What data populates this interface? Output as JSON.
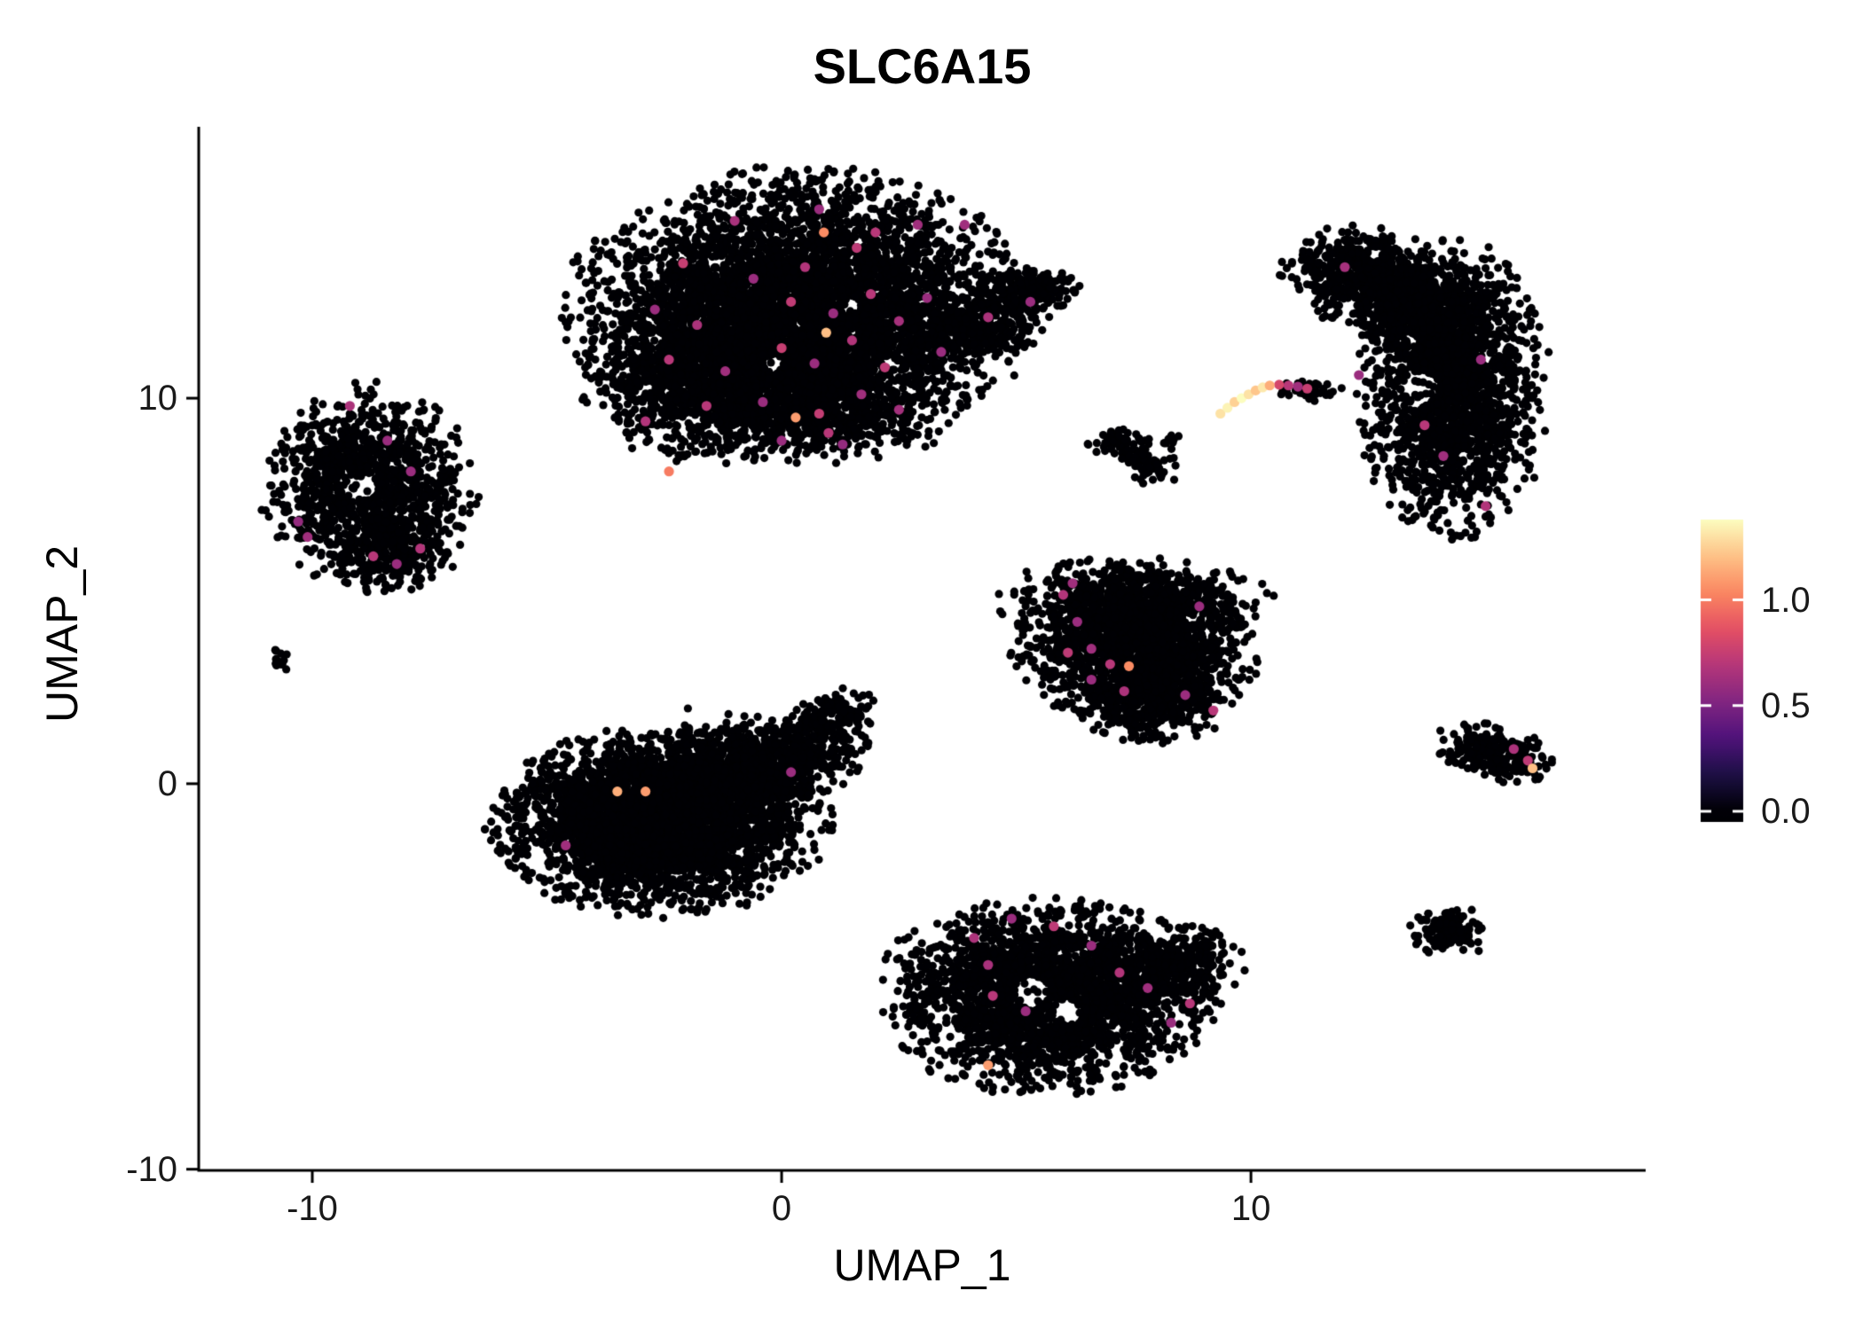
{
  "chart_data": {
    "type": "scatter",
    "title": "SLC6A15",
    "xlabel": "UMAP_1",
    "ylabel": "UMAP_2",
    "xlim": [
      -12.42,
      18.41
    ],
    "ylim": [
      -10.03,
      17.04
    ],
    "x_ticks": [
      -10,
      0,
      10
    ],
    "y_ticks": [
      -10,
      0,
      10
    ],
    "background_color": "#ffffff",
    "axis_color": "#000000",
    "point_radius_px": 4.6,
    "highlight_radius_px": 5.6,
    "colormap_stops": [
      [
        0,
        "#000004"
      ],
      [
        0.125,
        "#1c1044"
      ],
      [
        0.25,
        "#4f127b"
      ],
      [
        0.375,
        "#812581"
      ],
      [
        0.5,
        "#b5367a"
      ],
      [
        0.625,
        "#e55064"
      ],
      [
        0.75,
        "#fb8761"
      ],
      [
        0.875,
        "#fec287"
      ],
      [
        1,
        "#fcfdbf"
      ]
    ],
    "legend": {
      "tick_labels": [
        "1.0",
        "0.5",
        "0.0"
      ],
      "tick_values": [
        1.0,
        0.5,
        0.0
      ],
      "bar_vmin": -0.05,
      "bar_vmax": 1.38,
      "color_domain": [
        0,
        1.38
      ]
    },
    "clusters": [
      {
        "name": "top-main",
        "cx": 0.4,
        "cy": 12.3,
        "sx": 2.05,
        "sy": 1.5,
        "n": 5200
      },
      {
        "name": "top-lower-left",
        "cx": -1.6,
        "cy": 10.4,
        "sx": 1.15,
        "sy": 0.85,
        "n": 900
      },
      {
        "name": "top-lower",
        "cx": 0.8,
        "cy": 9.7,
        "sx": 1.3,
        "sy": 0.6,
        "n": 650
      },
      {
        "name": "top-arm",
        "cx": 4.1,
        "cy": 11.8,
        "sx": 0.7,
        "sy": 0.4,
        "n": 260,
        "rot": 0.35
      },
      {
        "name": "top-arm-2",
        "cx": 5.0,
        "cy": 12.7,
        "sx": 0.55,
        "sy": 0.28,
        "n": 150,
        "rot": 0.2
      },
      {
        "name": "top-speck",
        "cx": 5.6,
        "cy": 12.9,
        "sx": 0.22,
        "sy": 0.18,
        "n": 45
      },
      {
        "name": "top-dot",
        "cx": 6.3,
        "cy": 12.8,
        "sx": 0.08,
        "sy": 0.07,
        "n": 5
      },
      {
        "name": "left",
        "cx": -8.8,
        "cy": 7.7,
        "sx": 0.95,
        "sy": 1.1,
        "n": 1150
      },
      {
        "name": "left-lower",
        "cx": -8.3,
        "cy": 6.0,
        "sx": 0.55,
        "sy": 0.45,
        "n": 220
      },
      {
        "name": "tiny-left",
        "cx": -10.7,
        "cy": 3.2,
        "sx": 0.12,
        "sy": 0.17,
        "n": 14
      },
      {
        "name": "bottom-left-main",
        "cx": -2.6,
        "cy": -1.0,
        "sx": 1.5,
        "sy": 1.0,
        "n": 3400
      },
      {
        "name": "bottom-left-upper",
        "cx": -1.2,
        "cy": 0.6,
        "sx": 0.9,
        "sy": 0.6,
        "n": 400
      },
      {
        "name": "bottom-left-tail",
        "cx": 0.2,
        "cy": 0.6,
        "sx": 0.8,
        "sy": 0.5,
        "n": 450,
        "rot": 0.5
      },
      {
        "name": "bottom-left-tip",
        "cx": 1.1,
        "cy": 1.7,
        "sx": 0.45,
        "sy": 0.3,
        "n": 130,
        "rot": 0.6
      },
      {
        "name": "center-right-main",
        "cx": 7.6,
        "cy": 3.6,
        "sx": 1.1,
        "sy": 0.85,
        "n": 1600
      },
      {
        "name": "center-right-top",
        "cx": 7.5,
        "cy": 4.8,
        "sx": 1.2,
        "sy": 0.45,
        "n": 500
      },
      {
        "name": "center-right-bottom",
        "cx": 7.9,
        "cy": 2.2,
        "sx": 0.7,
        "sy": 0.5,
        "n": 450
      },
      {
        "name": "bottom-middle",
        "cx": 5.6,
        "cy": -5.5,
        "sx": 1.5,
        "sy": 1.05,
        "n": 2600
      },
      {
        "name": "bottom-middle-right",
        "cx": 8.4,
        "cy": -4.7,
        "sx": 0.6,
        "sy": 0.55,
        "n": 280
      },
      {
        "name": "right-main",
        "cx": 14.3,
        "cy": 10.2,
        "sx": 0.85,
        "sy": 1.6,
        "n": 1900
      },
      {
        "name": "right-hook",
        "cx": 12.6,
        "cy": 13.1,
        "sx": 0.85,
        "sy": 0.55,
        "n": 700,
        "rot": -0.3
      },
      {
        "name": "right-bridge",
        "cx": 13.6,
        "cy": 12.2,
        "sx": 0.6,
        "sy": 0.5,
        "n": 420
      },
      {
        "name": "speck-a",
        "cx": 7.2,
        "cy": 8.9,
        "sx": 0.28,
        "sy": 0.2,
        "n": 65
      },
      {
        "name": "speck-b",
        "cx": 7.9,
        "cy": 8.2,
        "sx": 0.25,
        "sy": 0.2,
        "n": 50
      },
      {
        "name": "speck-c",
        "cx": 7.5,
        "cy": 8.5,
        "sx": 0.15,
        "sy": 0.12,
        "n": 20
      },
      {
        "name": "speck-d",
        "cx": 8.3,
        "cy": 8.9,
        "sx": 0.12,
        "sy": 0.1,
        "n": 10
      },
      {
        "name": "streak-dark-end",
        "cx": 11.25,
        "cy": 10.2,
        "sx": 0.3,
        "sy": 0.12,
        "n": 45,
        "rot": -0.1
      },
      {
        "name": "right-small",
        "cx": 15.2,
        "cy": 0.8,
        "sx": 0.55,
        "sy": 0.3,
        "n": 240,
        "rot": -0.25
      },
      {
        "name": "right-bottom-blob",
        "cx": 14.25,
        "cy": -3.8,
        "sx": 0.35,
        "sy": 0.3,
        "n": 140
      }
    ],
    "voids": [
      {
        "cx": -8.95,
        "cy": 7.7,
        "r": 0.35
      },
      {
        "cx": -0.2,
        "cy": 10.9,
        "r": 0.22
      },
      {
        "cx": 1.5,
        "cy": 12.4,
        "r": 0.2
      },
      {
        "cx": 5.3,
        "cy": -5.4,
        "r": 0.42
      },
      {
        "cx": 6.1,
        "cy": -5.9,
        "r": 0.32
      },
      {
        "cx": 3.6,
        "cy": -6.6,
        "r": 0.3
      },
      {
        "cx": 13.6,
        "cy": 10.3,
        "r": 0.4
      }
    ],
    "expressing_cells": {
      "mid": {
        "value_range": [
          0.55,
          0.85
        ],
        "points": [
          [
            -1.0,
            14.6,
            0.65
          ],
          [
            0.8,
            14.9,
            0.6
          ],
          [
            2.0,
            14.3,
            0.7
          ],
          [
            2.9,
            14.5,
            0.62
          ],
          [
            3.9,
            14.5,
            0.62
          ],
          [
            -2.1,
            13.5,
            0.75
          ],
          [
            -0.6,
            13.1,
            0.6
          ],
          [
            0.5,
            13.4,
            0.68
          ],
          [
            1.6,
            13.9,
            0.72
          ],
          [
            -2.7,
            12.3,
            0.6
          ],
          [
            -1.8,
            11.9,
            0.66
          ],
          [
            0.2,
            12.5,
            0.73
          ],
          [
            1.1,
            12.2,
            0.6
          ],
          [
            1.9,
            12.7,
            0.7
          ],
          [
            2.5,
            12.0,
            0.64
          ],
          [
            3.1,
            12.6,
            0.6
          ],
          [
            5.3,
            12.5,
            0.6
          ],
          [
            -2.4,
            11.0,
            0.7
          ],
          [
            -1.2,
            10.7,
            0.62
          ],
          [
            0.0,
            11.3,
            0.75
          ],
          [
            0.7,
            10.9,
            0.6
          ],
          [
            1.5,
            11.5,
            0.68
          ],
          [
            2.2,
            10.8,
            0.72
          ],
          [
            3.4,
            11.2,
            0.6
          ],
          [
            4.4,
            12.1,
            0.66
          ],
          [
            -1.6,
            9.8,
            0.7
          ],
          [
            -0.4,
            9.9,
            0.6
          ],
          [
            0.8,
            9.6,
            0.74
          ],
          [
            1.7,
            10.1,
            0.62
          ],
          [
            -2.9,
            9.4,
            0.68
          ],
          [
            0.0,
            8.9,
            0.6
          ],
          [
            1.0,
            9.1,
            0.7
          ],
          [
            2.5,
            9.7,
            0.63
          ],
          [
            1.3,
            8.8,
            0.58
          ],
          [
            -9.2,
            9.8,
            0.66
          ],
          [
            -8.4,
            8.9,
            0.6
          ],
          [
            -7.9,
            8.1,
            0.6
          ],
          [
            -10.1,
            6.4,
            0.62
          ],
          [
            -8.7,
            5.9,
            0.7
          ],
          [
            -8.2,
            5.7,
            0.6
          ],
          [
            -7.7,
            6.1,
            0.68
          ],
          [
            -10.3,
            6.8,
            0.58
          ],
          [
            -4.6,
            -1.6,
            0.62
          ],
          [
            0.2,
            0.3,
            0.6
          ],
          [
            6.0,
            4.9,
            0.68
          ],
          [
            6.2,
            5.2,
            0.62
          ],
          [
            6.3,
            4.2,
            0.6
          ],
          [
            6.1,
            3.4,
            0.72
          ],
          [
            6.6,
            3.5,
            0.62
          ],
          [
            7.0,
            3.1,
            0.7
          ],
          [
            6.6,
            2.7,
            0.6
          ],
          [
            7.3,
            2.4,
            0.66
          ],
          [
            8.6,
            2.3,
            0.6
          ],
          [
            9.2,
            1.9,
            0.7
          ],
          [
            8.9,
            4.6,
            0.6
          ],
          [
            4.1,
            -4.0,
            0.66
          ],
          [
            4.9,
            -3.5,
            0.6
          ],
          [
            5.8,
            -3.7,
            0.72
          ],
          [
            6.6,
            -4.2,
            0.6
          ],
          [
            7.2,
            -4.9,
            0.68
          ],
          [
            7.8,
            -5.3,
            0.62
          ],
          [
            8.7,
            -5.7,
            0.7
          ],
          [
            5.2,
            -5.9,
            0.6
          ],
          [
            4.4,
            -4.7,
            0.65
          ],
          [
            8.3,
            -6.2,
            0.6
          ],
          [
            4.5,
            -5.5,
            0.7
          ],
          [
            12.0,
            13.4,
            0.64
          ],
          [
            14.9,
            11.0,
            0.6
          ],
          [
            13.7,
            9.3,
            0.7
          ],
          [
            14.1,
            8.5,
            0.62
          ],
          [
            15.0,
            7.2,
            0.68
          ],
          [
            12.3,
            10.6,
            0.6
          ],
          [
            10.6,
            10.35,
            0.8
          ],
          [
            10.8,
            10.33,
            0.7
          ],
          [
            11.0,
            10.3,
            0.62
          ],
          [
            11.2,
            10.25,
            0.75
          ],
          [
            15.6,
            0.9,
            0.66
          ],
          [
            15.9,
            0.6,
            0.72
          ]
        ]
      },
      "high": {
        "value_range": [
          0.95,
          1.38
        ],
        "points": [
          [
            0.95,
            11.7,
            1.2
          ],
          [
            0.3,
            9.5,
            1.1
          ],
          [
            0.9,
            14.3,
            1.05
          ],
          [
            -2.4,
            8.1,
            1.0
          ],
          [
            -3.5,
            -0.2,
            1.15
          ],
          [
            -2.9,
            -0.2,
            1.1
          ],
          [
            7.4,
            3.05,
            1.05
          ],
          [
            4.4,
            -7.3,
            1.1
          ],
          [
            9.35,
            9.6,
            1.3
          ],
          [
            9.5,
            9.75,
            1.35
          ],
          [
            9.65,
            9.9,
            1.25
          ],
          [
            9.8,
            10.0,
            1.38
          ],
          [
            9.95,
            10.1,
            1.3
          ],
          [
            10.1,
            10.2,
            1.22
          ],
          [
            10.25,
            10.28,
            1.32
          ],
          [
            10.4,
            10.33,
            1.15
          ],
          [
            16.0,
            0.4,
            1.2
          ]
        ]
      }
    }
  }
}
